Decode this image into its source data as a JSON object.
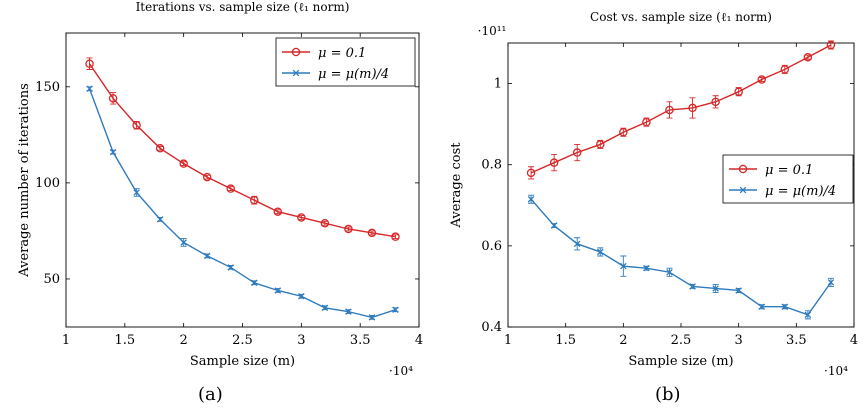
{
  "colors": {
    "series1": "#d62728",
    "series2": "#2e7bbd",
    "axis": "#000000"
  },
  "figure": {
    "caption_left": "(a)",
    "caption_right": "(b)"
  },
  "chart_data": [
    {
      "type": "line",
      "title": "Iterations vs. sample size (ℓ₁ norm)",
      "xlabel": "Sample size (m)",
      "ylabel": "Average number of iterations",
      "x_multiplier": "·10⁴",
      "xlim": [
        1,
        4
      ],
      "ylim": [
        25,
        178
      ],
      "xticks": [
        1,
        1.5,
        2,
        2.5,
        3,
        3.5,
        4
      ],
      "xtick_labels": [
        "1",
        "1.5",
        "2",
        "2.5",
        "3",
        "3.5",
        "4"
      ],
      "yticks": [
        50,
        100,
        150
      ],
      "ytick_labels": [
        "50",
        "100",
        "150"
      ],
      "legend_position": "top-right",
      "grid": false,
      "x": [
        1.2,
        1.4,
        1.6,
        1.8,
        2.0,
        2.2,
        2.4,
        2.6,
        2.8,
        3.0,
        3.2,
        3.4,
        3.6,
        3.8
      ],
      "series": [
        {
          "name": "μ = 0.1",
          "color": "#d62728",
          "marker": "circle",
          "values": [
            162,
            144,
            130,
            118,
            110,
            103,
            97,
            91,
            85,
            82,
            79,
            76,
            74,
            72
          ],
          "errors": [
            3,
            3,
            2,
            1,
            1,
            1,
            1,
            2,
            1,
            1,
            1,
            1,
            1,
            1
          ]
        },
        {
          "name": "μ = μ(m)/4",
          "color": "#2e7bbd",
          "marker": "x",
          "values": [
            149,
            116,
            95,
            81,
            69,
            62,
            56,
            48,
            44,
            41,
            35,
            33,
            30,
            34
          ],
          "errors": [
            1,
            1,
            2,
            1,
            2,
            1,
            1,
            1,
            1,
            1,
            1,
            1,
            1,
            1
          ]
        }
      ]
    },
    {
      "type": "line",
      "title": "Cost vs. sample size (ℓ₁ norm)",
      "xlabel": "Sample size (m)",
      "ylabel": "Average cost",
      "x_multiplier": "·10⁴",
      "y_multiplier": "·10¹¹",
      "xlim": [
        1,
        4
      ],
      "ylim": [
        0.4,
        1.1
      ],
      "xticks": [
        1,
        1.5,
        2,
        2.5,
        3,
        3.5,
        4
      ],
      "xtick_labels": [
        "1",
        "1.5",
        "2",
        "2.5",
        "3",
        "3.5",
        "4"
      ],
      "yticks": [
        0.4,
        0.6,
        0.8,
        1.0
      ],
      "ytick_labels": [
        "0.4",
        "0.6",
        "0.8",
        "1"
      ],
      "legend_position": "center-right",
      "grid": false,
      "x": [
        1.2,
        1.4,
        1.6,
        1.8,
        2.0,
        2.2,
        2.4,
        2.6,
        2.8,
        3.0,
        3.2,
        3.4,
        3.6,
        3.8
      ],
      "series": [
        {
          "name": "μ = 0.1",
          "color": "#d62728",
          "marker": "circle",
          "values": [
            0.78,
            0.805,
            0.83,
            0.85,
            0.88,
            0.905,
            0.935,
            0.94,
            0.955,
            0.98,
            1.01,
            1.035,
            1.065,
            1.095
          ],
          "errors": [
            0.015,
            0.02,
            0.02,
            0.01,
            0.01,
            0.01,
            0.02,
            0.025,
            0.015,
            0.01,
            0.005,
            0.01,
            0.005,
            0.01
          ]
        },
        {
          "name": "μ = μ(m)/4",
          "color": "#2e7bbd",
          "marker": "x",
          "values": [
            0.715,
            0.65,
            0.605,
            0.585,
            0.55,
            0.545,
            0.535,
            0.5,
            0.495,
            0.49,
            0.45,
            0.45,
            0.43,
            0.51
          ],
          "errors": [
            0.01,
            0.005,
            0.015,
            0.01,
            0.025,
            0.005,
            0.01,
            0.005,
            0.01,
            0.005,
            0.005,
            0.005,
            0.01,
            0.01
          ]
        }
      ]
    }
  ]
}
